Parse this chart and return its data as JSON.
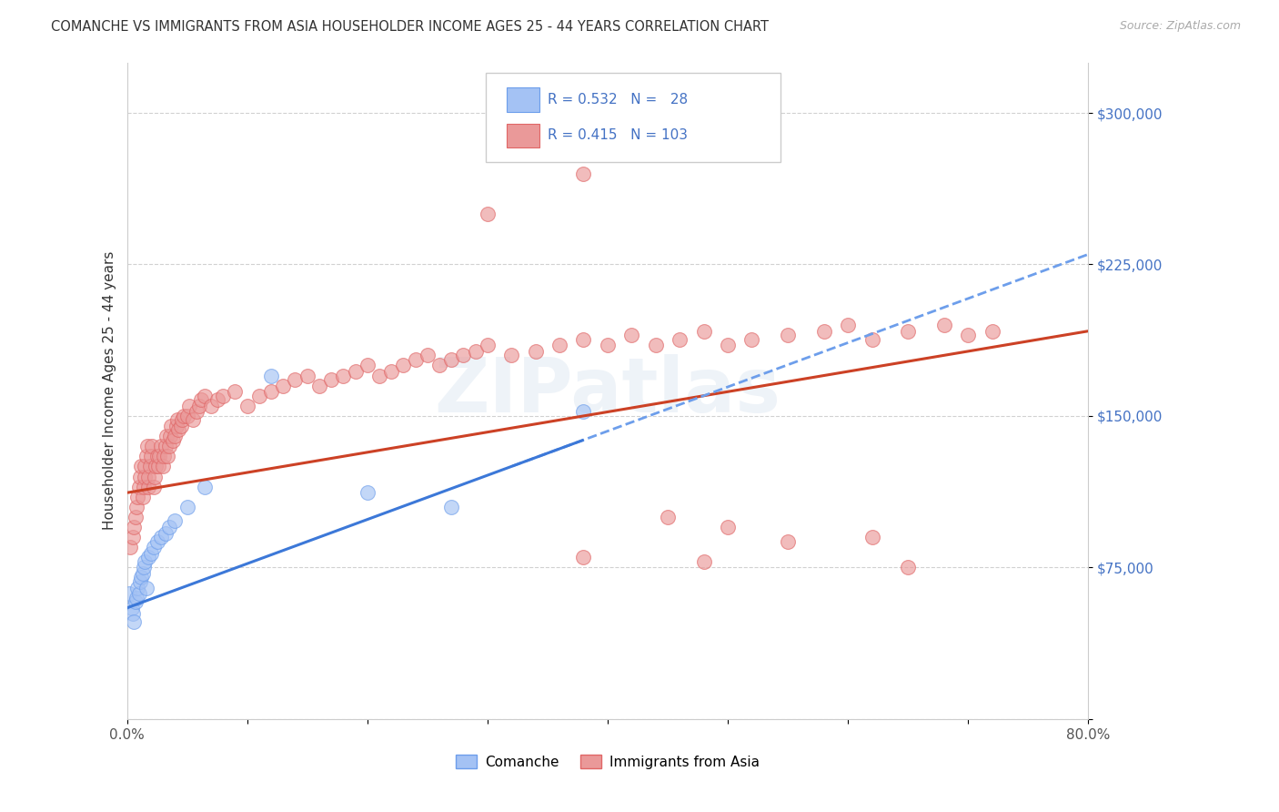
{
  "title": "COMANCHE VS IMMIGRANTS FROM ASIA HOUSEHOLDER INCOME AGES 25 - 44 YEARS CORRELATION CHART",
  "source": "Source: ZipAtlas.com",
  "ylabel": "Householder Income Ages 25 - 44 years",
  "xlim": [
    0.0,
    0.8
  ],
  "ylim": [
    0,
    325000
  ],
  "yticks": [
    0,
    75000,
    150000,
    225000,
    300000
  ],
  "ytick_labels": [
    "",
    "$75,000",
    "$150,000",
    "$225,000",
    "$300,000"
  ],
  "blue_scatter_color": "#a4c2f4",
  "blue_edge_color": "#6d9eeb",
  "pink_scatter_color": "#ea9999",
  "pink_edge_color": "#e06666",
  "line_blue_solid": "#3c78d8",
  "line_blue_dash": "#6d9eeb",
  "line_pink": "#cc4125",
  "grid_color": "#cccccc",
  "watermark": "ZIPatlas",
  "legend_blue_fill": "#a4c2f4",
  "legend_pink_fill": "#ea9999",
  "comanche_x": [
    0.002,
    0.004,
    0.005,
    0.006,
    0.007,
    0.008,
    0.009,
    0.01,
    0.011,
    0.012,
    0.013,
    0.014,
    0.015,
    0.016,
    0.018,
    0.02,
    0.022,
    0.025,
    0.028,
    0.032,
    0.035,
    0.04,
    0.05,
    0.065,
    0.12,
    0.2,
    0.27,
    0.38
  ],
  "comanche_y": [
    62000,
    55000,
    52000,
    48000,
    58000,
    60000,
    65000,
    62000,
    68000,
    70000,
    72000,
    75000,
    78000,
    65000,
    80000,
    82000,
    85000,
    88000,
    90000,
    92000,
    95000,
    98000,
    105000,
    115000,
    170000,
    112000,
    105000,
    152000
  ],
  "asia_x": [
    0.003,
    0.005,
    0.006,
    0.007,
    0.008,
    0.009,
    0.01,
    0.011,
    0.012,
    0.013,
    0.014,
    0.015,
    0.015,
    0.016,
    0.017,
    0.018,
    0.018,
    0.019,
    0.02,
    0.021,
    0.022,
    0.023,
    0.024,
    0.025,
    0.026,
    0.027,
    0.028,
    0.03,
    0.031,
    0.032,
    0.033,
    0.034,
    0.035,
    0.036,
    0.037,
    0.038,
    0.04,
    0.041,
    0.042,
    0.043,
    0.045,
    0.046,
    0.047,
    0.05,
    0.052,
    0.055,
    0.058,
    0.06,
    0.062,
    0.065,
    0.07,
    0.075,
    0.08,
    0.09,
    0.1,
    0.11,
    0.12,
    0.13,
    0.14,
    0.15,
    0.16,
    0.17,
    0.18,
    0.19,
    0.2,
    0.21,
    0.22,
    0.23,
    0.24,
    0.25,
    0.26,
    0.27,
    0.28,
    0.29,
    0.3,
    0.32,
    0.34,
    0.36,
    0.38,
    0.4,
    0.42,
    0.44,
    0.46,
    0.48,
    0.5,
    0.52,
    0.55,
    0.58,
    0.6,
    0.62,
    0.65,
    0.68,
    0.7,
    0.72,
    0.45,
    0.5,
    0.55,
    0.62,
    0.48,
    0.38,
    0.3,
    0.38,
    0.65
  ],
  "asia_y": [
    85000,
    90000,
    95000,
    100000,
    105000,
    110000,
    115000,
    120000,
    125000,
    110000,
    115000,
    120000,
    125000,
    130000,
    135000,
    115000,
    120000,
    125000,
    130000,
    135000,
    115000,
    120000,
    125000,
    130000,
    125000,
    130000,
    135000,
    125000,
    130000,
    135000,
    140000,
    130000,
    135000,
    140000,
    145000,
    138000,
    140000,
    145000,
    148000,
    143000,
    145000,
    148000,
    150000,
    150000,
    155000,
    148000,
    152000,
    155000,
    158000,
    160000,
    155000,
    158000,
    160000,
    162000,
    155000,
    160000,
    162000,
    165000,
    168000,
    170000,
    165000,
    168000,
    170000,
    172000,
    175000,
    170000,
    172000,
    175000,
    178000,
    180000,
    175000,
    178000,
    180000,
    182000,
    185000,
    180000,
    182000,
    185000,
    188000,
    185000,
    190000,
    185000,
    188000,
    192000,
    185000,
    188000,
    190000,
    192000,
    195000,
    188000,
    192000,
    195000,
    190000,
    192000,
    100000,
    95000,
    88000,
    90000,
    78000,
    80000,
    250000,
    270000,
    75000
  ]
}
